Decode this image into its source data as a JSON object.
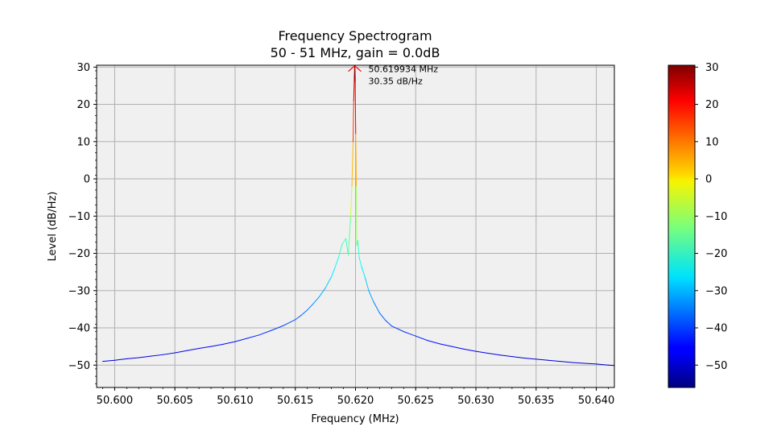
{
  "chart_data": {
    "type": "line",
    "title": "Frequency Spectrogram",
    "subtitle": "50 - 51 MHz, gain = 0.0dB",
    "xlabel": "Frequency (MHz)",
    "ylabel": "Level (dB/Hz)",
    "xlim": [
      50.5985,
      50.6415
    ],
    "ylim": [
      -56,
      30.5
    ],
    "xticks": [
      "50.600",
      "50.605",
      "50.610",
      "50.615",
      "50.620",
      "50.625",
      "50.630",
      "50.635",
      "50.640"
    ],
    "yticks": [
      "30",
      "20",
      "10",
      "0",
      "−10",
      "−20",
      "−30",
      "−40",
      "−50"
    ],
    "grid": true,
    "background_color": "#f0f0f0",
    "colormap": "jet",
    "series": [
      {
        "x": [
          50.599,
          50.6,
          50.601,
          50.602,
          50.603,
          50.604,
          50.605,
          50.606,
          50.607,
          50.608,
          50.609,
          50.61,
          50.611,
          50.612,
          50.613,
          50.614,
          50.6145,
          50.615,
          50.6155,
          50.616,
          50.6165,
          50.617,
          50.6175,
          50.618,
          50.6183,
          50.6186,
          50.6189,
          50.6192,
          50.6194,
          50.6196,
          50.6197,
          50.6198,
          50.61985,
          50.6199,
          50.619934,
          50.61997,
          50.62002,
          50.62007,
          50.6201,
          50.6202,
          50.6203,
          50.6205,
          50.6208,
          50.6211,
          50.6215,
          50.622,
          50.6225,
          50.623,
          50.624,
          50.625,
          50.626,
          50.627,
          50.628,
          50.629,
          50.63,
          50.631,
          50.632,
          50.633,
          50.634,
          50.635,
          50.636,
          50.637,
          50.638,
          50.639,
          50.64,
          50.641,
          50.6415
        ],
        "values": [
          -49.0,
          -48.7,
          -48.3,
          -48.0,
          -47.6,
          -47.2,
          -46.7,
          -46.1,
          -45.5,
          -45.0,
          -44.4,
          -43.7,
          -42.8,
          -41.9,
          -40.7,
          -39.4,
          -38.6,
          -37.8,
          -36.6,
          -35.2,
          -33.5,
          -31.6,
          -29.3,
          -26.3,
          -23.8,
          -21.0,
          -17.5,
          -16.0,
          -20.5,
          -10.0,
          -2.0,
          10.0,
          21.0,
          27.0,
          30.35,
          26.0,
          12.0,
          -2.0,
          -18.0,
          -16.5,
          -21.0,
          -23.5,
          -26.5,
          -30.0,
          -33.0,
          -36.0,
          -38.0,
          -39.5,
          -41.0,
          -42.2,
          -43.4,
          -44.3,
          -45.0,
          -45.7,
          -46.3,
          -46.8,
          -47.3,
          -47.7,
          -48.1,
          -48.4,
          -48.7,
          -49.0,
          -49.3,
          -49.5,
          -49.7,
          -50.0,
          -50.1
        ]
      }
    ],
    "peak_annotation": {
      "x": 50.619934,
      "y": 30.35,
      "freq_label": "50.619934 MHz",
      "level_label": "30.35 dB/Hz",
      "marker_color": "#ff0000"
    },
    "colorbar": {
      "range": [
        -56,
        30.5
      ],
      "ticks": [
        "30",
        "20",
        "10",
        "0",
        "−10",
        "−20",
        "−30",
        "−40",
        "−50"
      ]
    }
  }
}
